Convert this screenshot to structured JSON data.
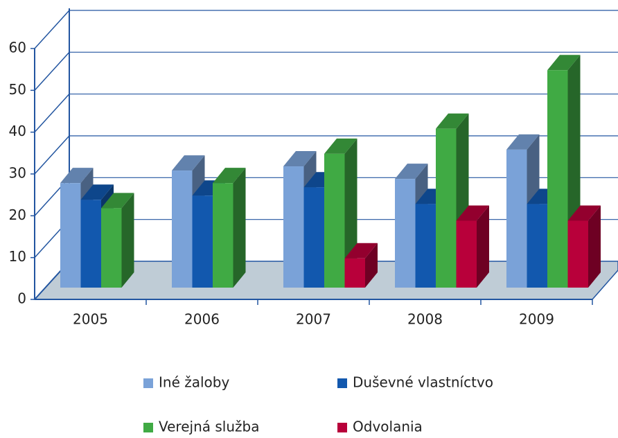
{
  "chart_data": {
    "type": "bar3d",
    "categories": [
      "2005",
      "2006",
      "2007",
      "2008",
      "2009"
    ],
    "series": [
      {
        "name": "Iné žaloby",
        "color": "#7aa2d8",
        "values": [
          25,
          28,
          29,
          26,
          33
        ]
      },
      {
        "name": "Duševné vlastníctvo",
        "color": "#1258ae",
        "values": [
          21,
          22,
          24,
          20,
          20
        ]
      },
      {
        "name": "Verejná služba",
        "color": "#40aa44",
        "values": [
          19,
          25,
          32,
          38,
          52
        ]
      },
      {
        "name": "Odvolania",
        "color": "#b8003a",
        "values": [
          null,
          null,
          7,
          16,
          16
        ]
      }
    ],
    "ylim": [
      0,
      60
    ],
    "yticks": [
      0,
      10,
      20,
      30,
      40,
      50,
      60
    ],
    "grid": true
  }
}
